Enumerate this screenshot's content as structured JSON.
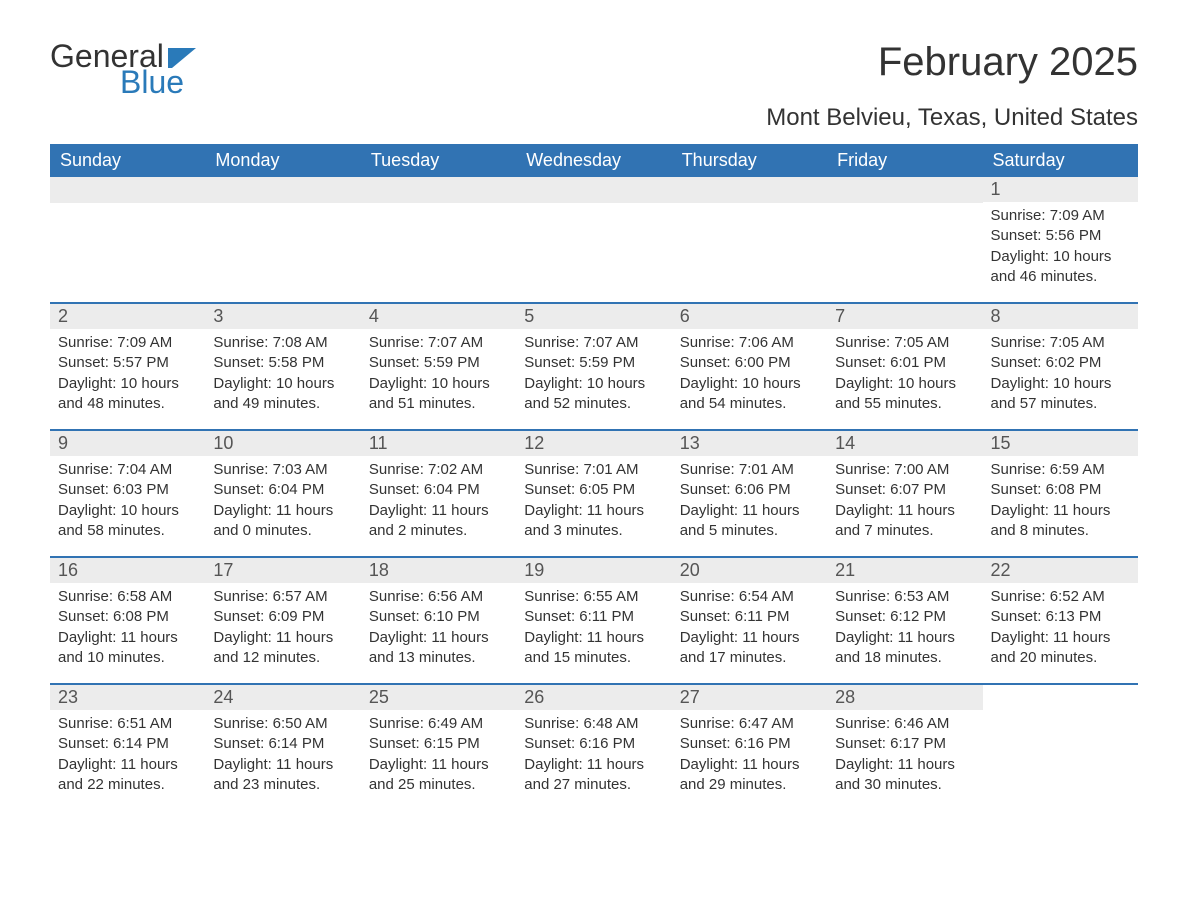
{
  "logo": {
    "word1": "General",
    "word2": "Blue",
    "flag_color": "#2a7ab9"
  },
  "title": "February 2025",
  "subtitle": "Mont Belvieu, Texas, United States",
  "colors": {
    "header_bg": "#3173b3",
    "header_text": "#ffffff",
    "daynum_bg": "#ececec",
    "text": "#333333",
    "accent": "#2a7ab9"
  },
  "day_names": [
    "Sunday",
    "Monday",
    "Tuesday",
    "Wednesday",
    "Thursday",
    "Friday",
    "Saturday"
  ],
  "weeks": [
    [
      {
        "n": "",
        "lines": []
      },
      {
        "n": "",
        "lines": []
      },
      {
        "n": "",
        "lines": []
      },
      {
        "n": "",
        "lines": []
      },
      {
        "n": "",
        "lines": []
      },
      {
        "n": "",
        "lines": []
      },
      {
        "n": "1",
        "lines": [
          "Sunrise: 7:09 AM",
          "Sunset: 5:56 PM",
          "Daylight: 10 hours and 46 minutes."
        ]
      }
    ],
    [
      {
        "n": "2",
        "lines": [
          "Sunrise: 7:09 AM",
          "Sunset: 5:57 PM",
          "Daylight: 10 hours and 48 minutes."
        ]
      },
      {
        "n": "3",
        "lines": [
          "Sunrise: 7:08 AM",
          "Sunset: 5:58 PM",
          "Daylight: 10 hours and 49 minutes."
        ]
      },
      {
        "n": "4",
        "lines": [
          "Sunrise: 7:07 AM",
          "Sunset: 5:59 PM",
          "Daylight: 10 hours and 51 minutes."
        ]
      },
      {
        "n": "5",
        "lines": [
          "Sunrise: 7:07 AM",
          "Sunset: 5:59 PM",
          "Daylight: 10 hours and 52 minutes."
        ]
      },
      {
        "n": "6",
        "lines": [
          "Sunrise: 7:06 AM",
          "Sunset: 6:00 PM",
          "Daylight: 10 hours and 54 minutes."
        ]
      },
      {
        "n": "7",
        "lines": [
          "Sunrise: 7:05 AM",
          "Sunset: 6:01 PM",
          "Daylight: 10 hours and 55 minutes."
        ]
      },
      {
        "n": "8",
        "lines": [
          "Sunrise: 7:05 AM",
          "Sunset: 6:02 PM",
          "Daylight: 10 hours and 57 minutes."
        ]
      }
    ],
    [
      {
        "n": "9",
        "lines": [
          "Sunrise: 7:04 AM",
          "Sunset: 6:03 PM",
          "Daylight: 10 hours and 58 minutes."
        ]
      },
      {
        "n": "10",
        "lines": [
          "Sunrise: 7:03 AM",
          "Sunset: 6:04 PM",
          "Daylight: 11 hours and 0 minutes."
        ]
      },
      {
        "n": "11",
        "lines": [
          "Sunrise: 7:02 AM",
          "Sunset: 6:04 PM",
          "Daylight: 11 hours and 2 minutes."
        ]
      },
      {
        "n": "12",
        "lines": [
          "Sunrise: 7:01 AM",
          "Sunset: 6:05 PM",
          "Daylight: 11 hours and 3 minutes."
        ]
      },
      {
        "n": "13",
        "lines": [
          "Sunrise: 7:01 AM",
          "Sunset: 6:06 PM",
          "Daylight: 11 hours and 5 minutes."
        ]
      },
      {
        "n": "14",
        "lines": [
          "Sunrise: 7:00 AM",
          "Sunset: 6:07 PM",
          "Daylight: 11 hours and 7 minutes."
        ]
      },
      {
        "n": "15",
        "lines": [
          "Sunrise: 6:59 AM",
          "Sunset: 6:08 PM",
          "Daylight: 11 hours and 8 minutes."
        ]
      }
    ],
    [
      {
        "n": "16",
        "lines": [
          "Sunrise: 6:58 AM",
          "Sunset: 6:08 PM",
          "Daylight: 11 hours and 10 minutes."
        ]
      },
      {
        "n": "17",
        "lines": [
          "Sunrise: 6:57 AM",
          "Sunset: 6:09 PM",
          "Daylight: 11 hours and 12 minutes."
        ]
      },
      {
        "n": "18",
        "lines": [
          "Sunrise: 6:56 AM",
          "Sunset: 6:10 PM",
          "Daylight: 11 hours and 13 minutes."
        ]
      },
      {
        "n": "19",
        "lines": [
          "Sunrise: 6:55 AM",
          "Sunset: 6:11 PM",
          "Daylight: 11 hours and 15 minutes."
        ]
      },
      {
        "n": "20",
        "lines": [
          "Sunrise: 6:54 AM",
          "Sunset: 6:11 PM",
          "Daylight: 11 hours and 17 minutes."
        ]
      },
      {
        "n": "21",
        "lines": [
          "Sunrise: 6:53 AM",
          "Sunset: 6:12 PM",
          "Daylight: 11 hours and 18 minutes."
        ]
      },
      {
        "n": "22",
        "lines": [
          "Sunrise: 6:52 AM",
          "Sunset: 6:13 PM",
          "Daylight: 11 hours and 20 minutes."
        ]
      }
    ],
    [
      {
        "n": "23",
        "lines": [
          "Sunrise: 6:51 AM",
          "Sunset: 6:14 PM",
          "Daylight: 11 hours and 22 minutes."
        ]
      },
      {
        "n": "24",
        "lines": [
          "Sunrise: 6:50 AM",
          "Sunset: 6:14 PM",
          "Daylight: 11 hours and 23 minutes."
        ]
      },
      {
        "n": "25",
        "lines": [
          "Sunrise: 6:49 AM",
          "Sunset: 6:15 PM",
          "Daylight: 11 hours and 25 minutes."
        ]
      },
      {
        "n": "26",
        "lines": [
          "Sunrise: 6:48 AM",
          "Sunset: 6:16 PM",
          "Daylight: 11 hours and 27 minutes."
        ]
      },
      {
        "n": "27",
        "lines": [
          "Sunrise: 6:47 AM",
          "Sunset: 6:16 PM",
          "Daylight: 11 hours and 29 minutes."
        ]
      },
      {
        "n": "28",
        "lines": [
          "Sunrise: 6:46 AM",
          "Sunset: 6:17 PM",
          "Daylight: 11 hours and 30 minutes."
        ]
      },
      {
        "n": "",
        "lines": []
      }
    ]
  ]
}
